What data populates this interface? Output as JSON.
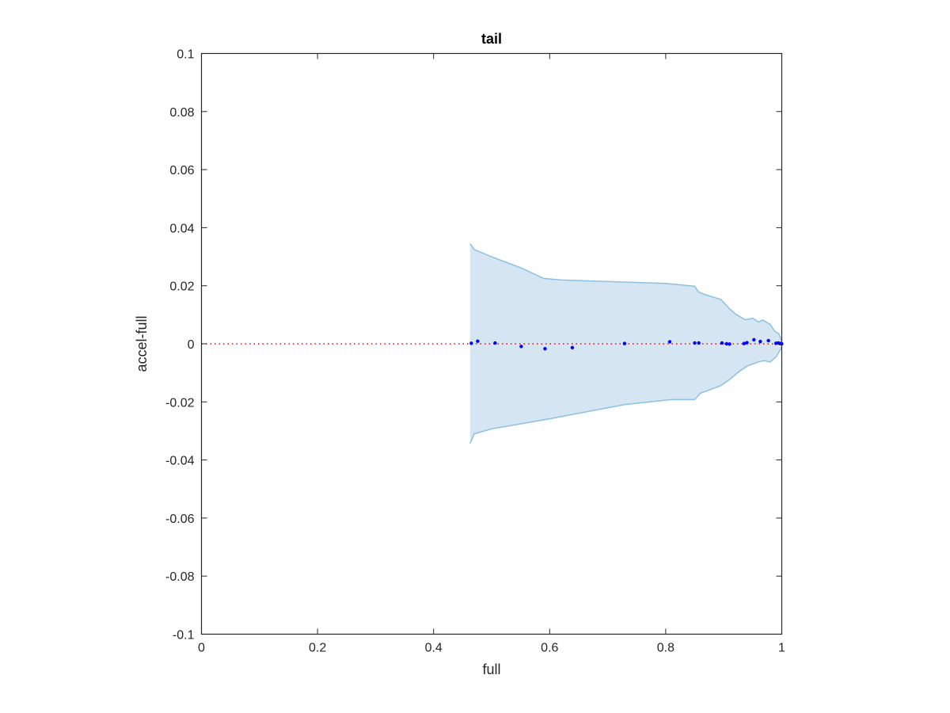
{
  "chart_data": {
    "type": "scatter",
    "title": "tail",
    "xlabel": "full",
    "ylabel": "accel-full",
    "xlim": [
      0,
      1
    ],
    "ylim": [
      -0.1,
      0.1
    ],
    "x_ticks": [
      "0",
      "0.2",
      "0.4",
      "0.6",
      "0.8",
      "1"
    ],
    "y_ticks": [
      "0.1",
      "0.08",
      "0.06",
      "0.04",
      "0.02",
      "0",
      "-0.02",
      "-0.04",
      "-0.06",
      "-0.08",
      "-0.1"
    ],
    "grid": false,
    "reference_line": {
      "y": 0,
      "style": "dotted",
      "color": "#ff0000"
    },
    "band": {
      "color_fill": "#d5e5f2",
      "color_edge": "#8dc0e3",
      "upper": [
        [
          0.463,
          0.0345
        ],
        [
          0.47,
          0.0325
        ],
        [
          0.5,
          0.03
        ],
        [
          0.55,
          0.0262
        ],
        [
          0.59,
          0.0225
        ],
        [
          0.62,
          0.022
        ],
        [
          0.8,
          0.0208
        ],
        [
          0.85,
          0.0198
        ],
        [
          0.857,
          0.0178
        ],
        [
          0.87,
          0.0168
        ],
        [
          0.895,
          0.0153
        ],
        [
          0.91,
          0.0121
        ],
        [
          0.92,
          0.0103
        ],
        [
          0.937,
          0.0083
        ],
        [
          0.95,
          0.0088
        ],
        [
          0.96,
          0.0075
        ],
        [
          0.967,
          0.0082
        ],
        [
          0.98,
          0.0067
        ],
        [
          0.988,
          0.0043
        ],
        [
          0.995,
          0.0035
        ],
        [
          1.0,
          0.001
        ]
      ],
      "lower": [
        [
          0.463,
          -0.0343
        ],
        [
          0.47,
          -0.031
        ],
        [
          0.5,
          -0.0293
        ],
        [
          0.6,
          -0.0258
        ],
        [
          0.73,
          -0.0209
        ],
        [
          0.81,
          -0.0192
        ],
        [
          0.85,
          -0.0192
        ],
        [
          0.86,
          -0.017
        ],
        [
          0.895,
          -0.0144
        ],
        [
          0.91,
          -0.0123
        ],
        [
          0.925,
          -0.0098
        ],
        [
          0.94,
          -0.0077
        ],
        [
          0.96,
          -0.0062
        ],
        [
          0.97,
          -0.0058
        ],
        [
          0.98,
          -0.0063
        ],
        [
          0.99,
          -0.0045
        ],
        [
          1.0,
          -0.0012
        ]
      ]
    },
    "series": [
      {
        "color": "#0000ff",
        "points": [
          [
            0.465,
            0.0002
          ],
          [
            0.476,
            0.0009
          ],
          [
            0.506,
            0.0003
          ],
          [
            0.551,
            -0.0009
          ],
          [
            0.592,
            -0.0017
          ],
          [
            0.639,
            -0.0013
          ],
          [
            0.729,
            0.0001
          ],
          [
            0.807,
            0.0007
          ],
          [
            0.85,
            0.0003
          ],
          [
            0.857,
            0.0003
          ],
          [
            0.897,
            0.0003
          ],
          [
            0.905,
            0.0
          ],
          [
            0.91,
            -0.0001
          ],
          [
            0.935,
            0.0001
          ],
          [
            0.94,
            0.0004
          ],
          [
            0.952,
            0.0014
          ],
          [
            0.963,
            0.0008
          ],
          [
            0.977,
            0.0011
          ],
          [
            0.99,
            0.0002
          ],
          [
            0.994,
            0.0003
          ],
          [
            0.997,
            0.0001
          ],
          [
            1.0,
            0.0
          ]
        ]
      }
    ]
  }
}
